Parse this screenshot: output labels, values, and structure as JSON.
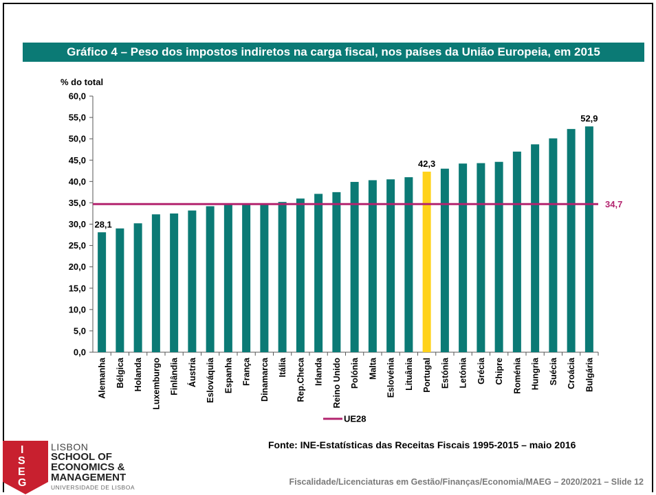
{
  "title": "Gráfico 4 – Peso dos impostos indiretos na carga fiscal, nos países da União Europeia, em 2015",
  "source": "Fonte: INE-Estatísticas das Receitas Fiscais 1995-2015 – maio 2016",
  "footer": "Fiscalidade/Licenciaturas em Gestão/Finanças/Economia/MAEG – 2020/2021 – Slide 12",
  "logo": {
    "mark": "ISEG",
    "line1": "LISBON",
    "line2": "SCHOOL OF",
    "line3": "ECONOMICS &",
    "line4": "MANAGEMENT",
    "line5": "UNIVERSIDADE DE LISBOA"
  },
  "colors": {
    "bar": "#0b7a75",
    "highlight": "#ffd21a",
    "reference": "#b3246f",
    "banner": "#0b7a75"
  },
  "chart_data": {
    "type": "bar",
    "ylabel": "% do total",
    "ylim": [
      0,
      60
    ],
    "ytick_step": 5,
    "ytick_labels": [
      "0,0",
      "5,0",
      "10,0",
      "15,0",
      "20,0",
      "25,0",
      "30,0",
      "35,0",
      "40,0",
      "45,0",
      "50,0",
      "55,0",
      "60,0"
    ],
    "grid": false,
    "categories": [
      "Alemanha",
      "Bélgica",
      "Holanda",
      "Luxemburgo",
      "Finlândia",
      "Áustria",
      "Eslováquia",
      "Espanha",
      "França",
      "Dinamarca",
      "Itália",
      "Rep.Checa",
      "Irlanda",
      "Reino Unido",
      "Polónia",
      "Malta",
      "Eslovénia",
      "Lituânia",
      "Portugal",
      "Estónia",
      "Letónia",
      "Grécia",
      "Chipre",
      "Roménia",
      "Hungria",
      "Suécia",
      "Croácia",
      "Bulgária"
    ],
    "values": [
      28.1,
      29.0,
      30.2,
      32.3,
      32.5,
      33.2,
      34.2,
      34.5,
      34.6,
      34.6,
      35.2,
      36.0,
      37.1,
      37.5,
      39.9,
      40.3,
      40.5,
      41.0,
      42.3,
      43.0,
      44.2,
      44.3,
      44.6,
      47.0,
      48.7,
      50.1,
      52.3,
      52.9
    ],
    "highlight": "Portugal",
    "data_labels": [
      {
        "category": "Alemanha",
        "text": "28,1"
      },
      {
        "category": "Portugal",
        "text": "42,3"
      },
      {
        "category": "Bulgária",
        "text": "52,9"
      }
    ],
    "reference_line": {
      "name": "UE28",
      "value": 34.7,
      "label": "34,7"
    },
    "legend": {
      "placement": "bottom",
      "entries": [
        "UE28"
      ]
    }
  }
}
